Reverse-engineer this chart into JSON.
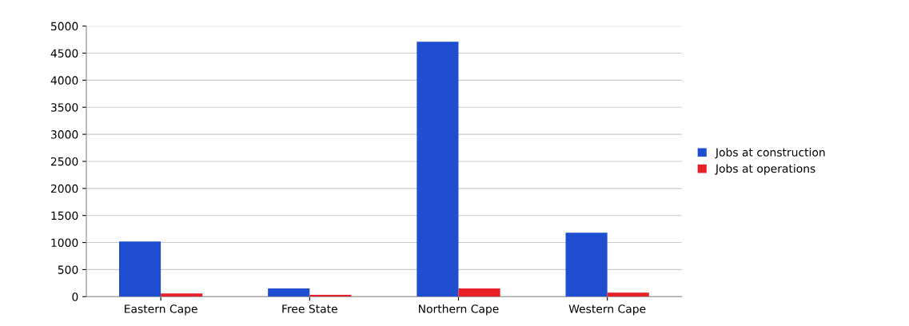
{
  "chart_data": {
    "type": "bar",
    "categories": [
      "Eastern Cape",
      "Free State",
      "Northern Cape",
      "Western Cape"
    ],
    "series": [
      {
        "name": "Jobs at construction",
        "color": "#1f4fd0",
        "values": [
          1020,
          150,
          4710,
          1180
        ]
      },
      {
        "name": "Jobs at operations",
        "color": "#e8202a",
        "values": [
          60,
          35,
          150,
          75
        ]
      }
    ],
    "ylim": [
      0,
      5000
    ],
    "yticks": [
      0,
      500,
      1000,
      1500,
      2000,
      2500,
      3000,
      3500,
      4000,
      4500,
      5000
    ],
    "grid": "y",
    "legend": "right"
  }
}
